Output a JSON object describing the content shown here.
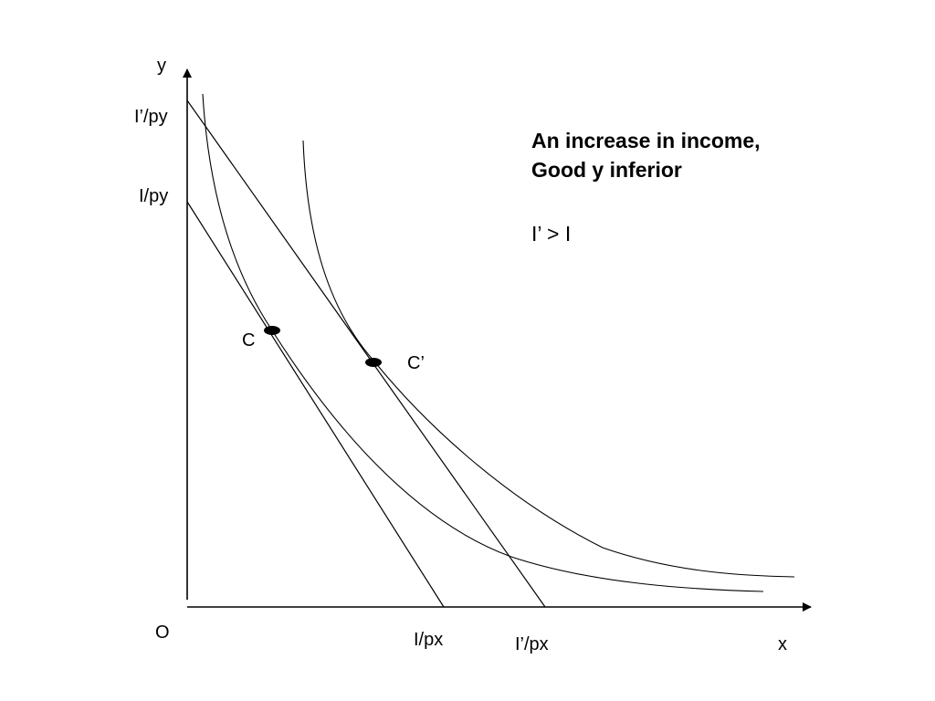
{
  "title": {
    "line1": "An increase in income,",
    "line2": "Good y inferior"
  },
  "inequality": "I’ > I",
  "axes": {
    "y_label": "y",
    "x_label": "x",
    "origin_label": "O"
  },
  "intercepts": {
    "y_new": "I’/py",
    "y_old": "I/py",
    "x_old": "I/px",
    "x_new": "I’/px"
  },
  "points": {
    "old": "C",
    "new": "C’"
  }
}
